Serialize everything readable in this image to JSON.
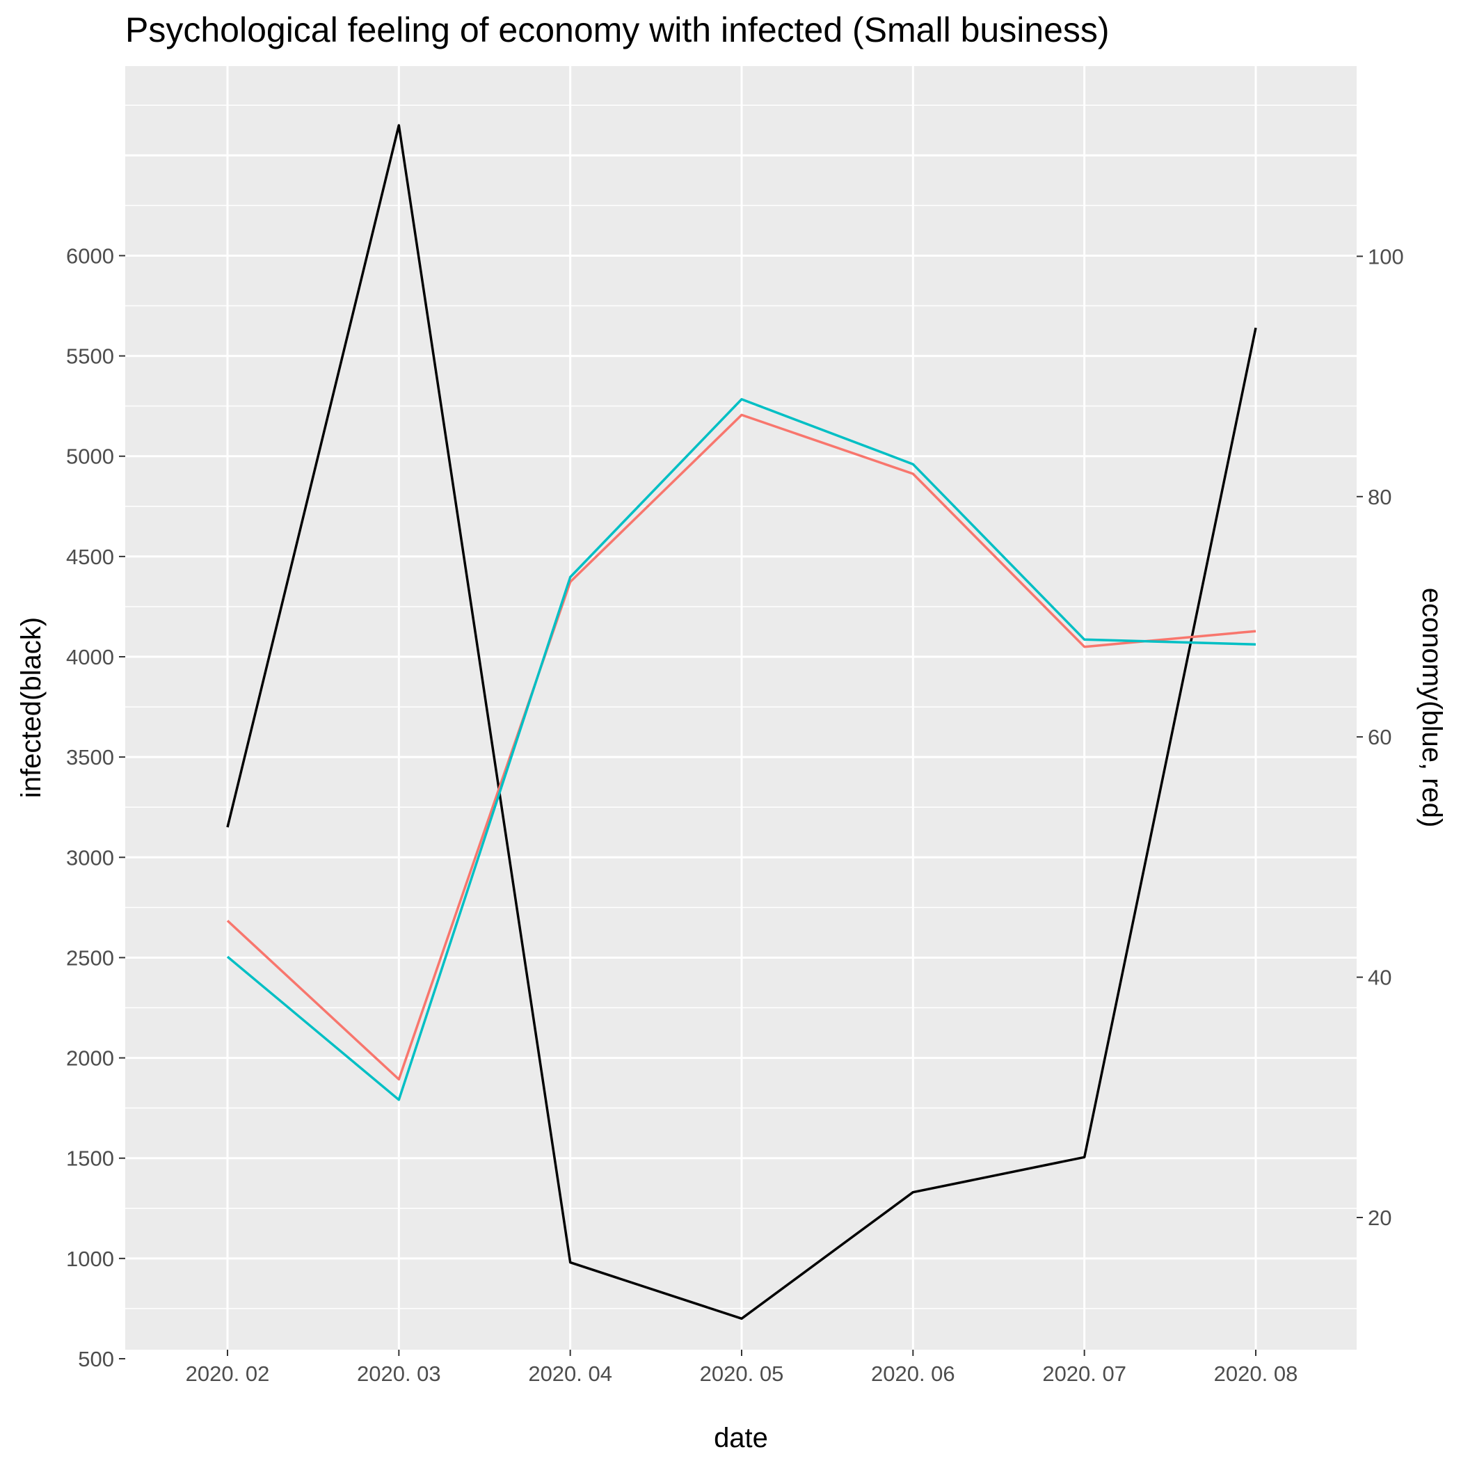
{
  "chart_data": {
    "type": "line",
    "title": "Psychological feeling of economy with infected (Small business)",
    "xlabel": "date",
    "ylabel_left": "infected(black)",
    "ylabel_right": "economy(blue, red)",
    "categories": [
      "2020. 02",
      "2020. 03",
      "2020. 04",
      "2020. 05",
      "2020. 06",
      "2020. 07",
      "2020. 08"
    ],
    "left_axis": {
      "ticks": [
        500,
        1000,
        1500,
        2000,
        2500,
        3000,
        3500,
        4000,
        4500,
        5000,
        5500,
        6000
      ]
    },
    "right_axis": {
      "ticks": [
        20,
        40,
        60,
        80,
        100
      ]
    },
    "series": [
      {
        "axis": "left",
        "color": "#000000",
        "values": [
          3150,
          6650,
          980,
          700,
          1330,
          1505,
          5640
        ]
      },
      {
        "axis": "right",
        "color": "#F8766D",
        "values": [
          44.7,
          31.5,
          72.9,
          86.8,
          81.9,
          67.5,
          68.8
        ]
      },
      {
        "axis": "right",
        "color": "#00BFC4",
        "values": [
          41.7,
          29.8,
          73.3,
          88.1,
          82.7,
          68.1,
          67.7
        ]
      }
    ],
    "grid": true,
    "panel_background": "#EBEBEB"
  }
}
